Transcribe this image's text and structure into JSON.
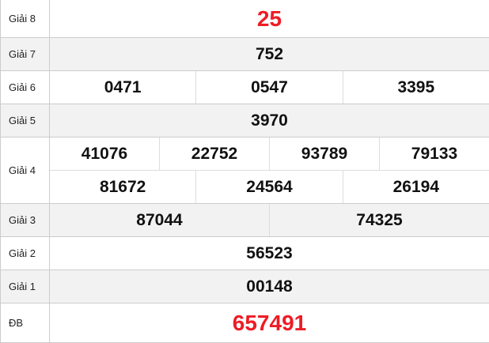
{
  "accent_color": "#ee1c25",
  "prizes": [
    {
      "label": "Giải 8",
      "lines": [
        [
          "25"
        ]
      ],
      "highlight": true
    },
    {
      "label": "Giải 7",
      "lines": [
        [
          "752"
        ]
      ]
    },
    {
      "label": "Giải 6",
      "lines": [
        [
          "0471",
          "0547",
          "3395"
        ]
      ]
    },
    {
      "label": "Giải 5",
      "lines": [
        [
          "3970"
        ]
      ]
    },
    {
      "label": "Giải 4",
      "lines": [
        [
          "41076",
          "22752",
          "93789",
          "79133"
        ],
        [
          "81672",
          "24564",
          "26194"
        ]
      ]
    },
    {
      "label": "Giải 3",
      "lines": [
        [
          "87044",
          "74325"
        ]
      ]
    },
    {
      "label": "Giải 2",
      "lines": [
        [
          "56523"
        ]
      ]
    },
    {
      "label": "Giải 1",
      "lines": [
        [
          "00148"
        ]
      ]
    },
    {
      "label": "ĐB",
      "lines": [
        [
          "657491"
        ]
      ],
      "highlight": true
    }
  ]
}
